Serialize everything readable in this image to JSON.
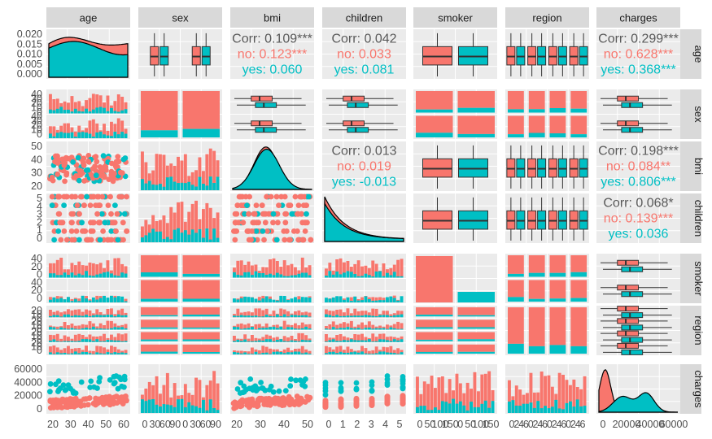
{
  "chart_data": {
    "type": "pairs",
    "variables": [
      "age",
      "sex",
      "bmi",
      "children",
      "smoker",
      "region",
      "charges"
    ],
    "color_by": "smoker",
    "groups": [
      {
        "name": "no",
        "color": "#F8766D"
      },
      {
        "name": "yes",
        "color": "#00BFC4"
      }
    ],
    "correlations": [
      {
        "vars": [
          "age",
          "bmi"
        ],
        "overall": "Corr: 0.109***",
        "no": "no: 0.123***",
        "yes": "yes: 0.060"
      },
      {
        "vars": [
          "age",
          "children"
        ],
        "overall": "Corr: 0.042",
        "no": "no: 0.033",
        "yes": "yes: 0.081"
      },
      {
        "vars": [
          "age",
          "charges"
        ],
        "overall": "Corr: 0.299***",
        "no": "no: 0.628***",
        "yes": "yes: 0.368***"
      },
      {
        "vars": [
          "bmi",
          "children"
        ],
        "overall": "Corr: 0.013",
        "no": "no: 0.019",
        "yes": "yes: -0.013"
      },
      {
        "vars": [
          "bmi",
          "charges"
        ],
        "overall": "Corr: 0.198***",
        "no": "no: 0.084**",
        "yes": "yes: 0.806***"
      },
      {
        "vars": [
          "children",
          "charges"
        ],
        "overall": "Corr: 0.068*",
        "no": "no: 0.139***",
        "yes": "yes: 0.036"
      }
    ],
    "row_tick_labels": {
      "age": [
        "0.020",
        "0.015",
        "0.010",
        "0.005",
        "0.000"
      ],
      "sex": [
        "40",
        "30",
        "20",
        "10",
        "0",
        "40",
        "30",
        "20",
        "10",
        "0"
      ],
      "bmi": [
        "50",
        "40",
        "30",
        "20"
      ],
      "children": [
        "5",
        "4",
        "3",
        "2",
        "1",
        "0"
      ],
      "smoker": [
        "40",
        "20",
        "0",
        "40",
        "20",
        "0"
      ],
      "region": [
        "20",
        "10",
        "0",
        "20",
        "10",
        "0",
        "20",
        "10",
        "0",
        "20",
        "10",
        "0"
      ],
      "charges": [
        "60000",
        "40000",
        "20000",
        "0"
      ]
    },
    "col_tick_labels": {
      "age": [
        "20",
        "30",
        "40",
        "50",
        "60"
      ],
      "sex": [
        "0",
        "30",
        "60",
        "90",
        "0",
        "30",
        "60",
        "90"
      ],
      "bmi": [
        "20",
        "30",
        "40",
        "50"
      ],
      "children": [
        "0",
        "1",
        "2",
        "3",
        "4",
        "5"
      ],
      "smoker": [
        "0",
        "50",
        "100",
        "150",
        "0",
        "50",
        "100",
        "150"
      ],
      "region": [
        "0",
        "2",
        "4",
        "6",
        "0",
        "2",
        "4",
        "6",
        "0",
        "2",
        "4",
        "6",
        "0",
        "2",
        "4",
        "6"
      ],
      "charges": [
        "0",
        "20000",
        "40000",
        "60000"
      ]
    },
    "grid": true
  }
}
